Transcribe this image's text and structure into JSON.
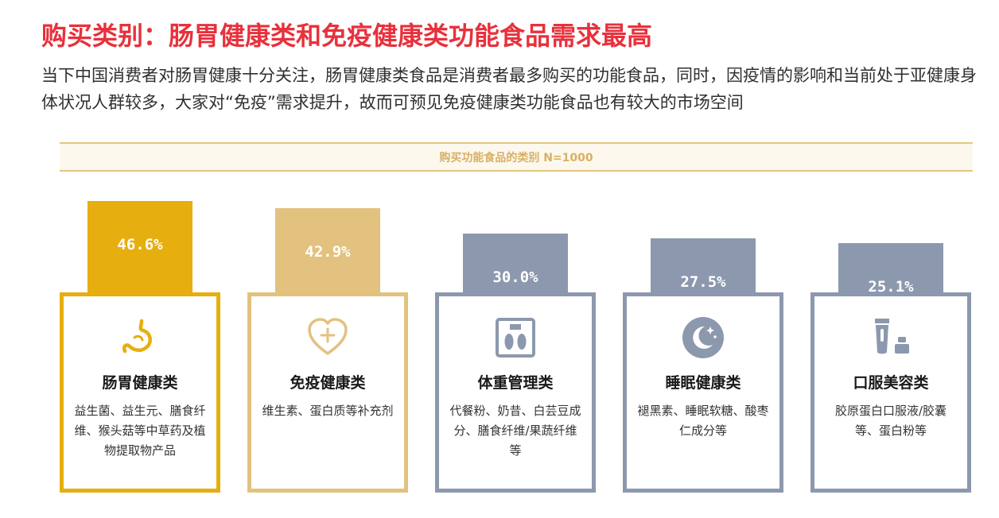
{
  "title": "购买类别：肠胃健康类和免疫健康类功能食品需求最高",
  "subtitle": "当下中国消费者对肠胃健康十分关注，肠胃健康类食品是消费者最多购买的功能食品，同时，因疫情的影响和当前处于亚健康身体状况人群较多，大家对“免疫”需求提升，故而可预见免疫健康类功能食品也有较大的市场空间",
  "chart_data": {
    "type": "bar",
    "title": "购买功能食品的类别 N=1000",
    "categories": [
      "肠胃健康类",
      "免疫健康类",
      "体重管理类",
      "睡眠健康类",
      "口服美容类"
    ],
    "values": [
      46.6,
      42.9,
      30.0,
      27.5,
      25.1
    ],
    "value_labels": [
      "46.6%",
      "42.9%",
      "30.0%",
      "27.5%",
      "25.1%"
    ],
    "colors": [
      "#e6ae0f",
      "#e3c27f",
      "#8c98ad",
      "#8c98ad",
      "#8c98ad"
    ],
    "descriptions": [
      "益生菌、益生元、膳食纤维、猴头菇等中草药及植物提取物产品",
      "维生素、蛋白质等补充剂",
      "代餐粉、奶昔、白芸豆成分、膳食纤维/果蔬纤维等",
      "褪黑素、睡眠软糖、酸枣仁成分等",
      "胶原蛋白口服液/胶囊等、蛋白粉等"
    ],
    "icons": [
      "stomach-icon",
      "heart-plus-icon",
      "weight-scale-icon",
      "moon-stars-icon",
      "cosmetics-icon"
    ]
  }
}
